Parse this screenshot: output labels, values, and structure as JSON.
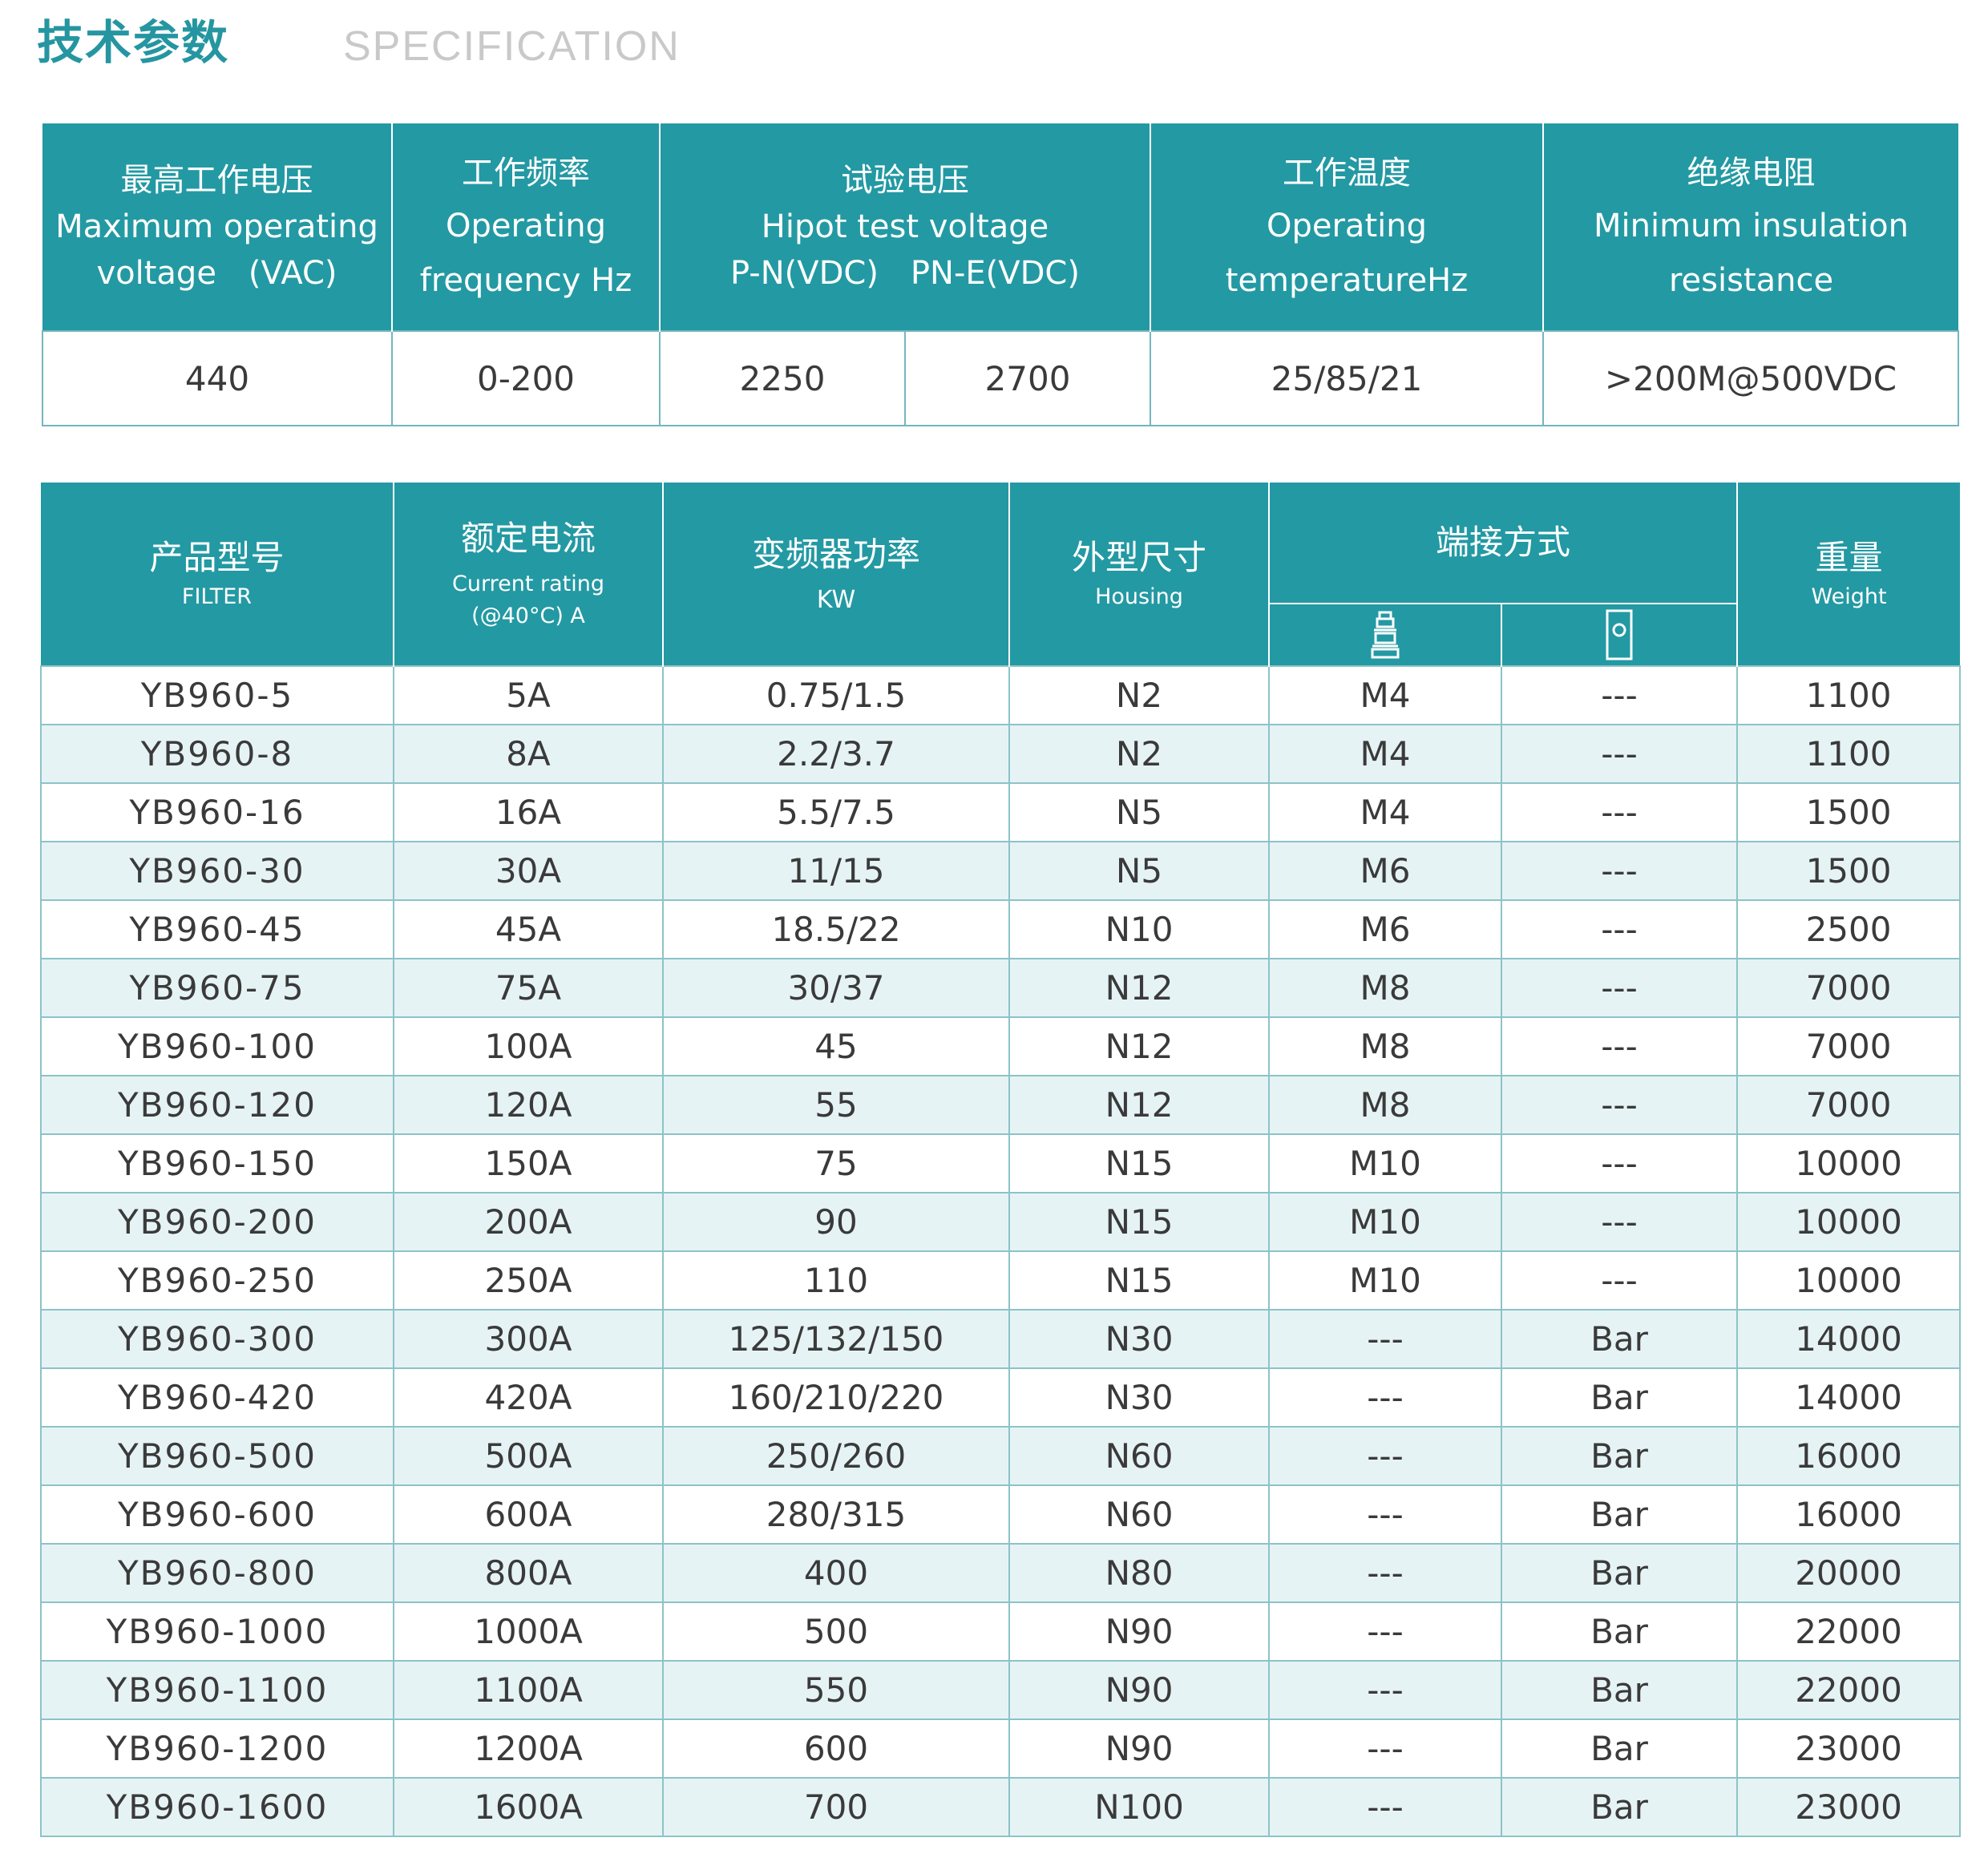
{
  "heading": {
    "cn": "技术参数",
    "en": "SPECIFICATION"
  },
  "spec": {
    "headers": [
      {
        "cn": "最高工作电压",
        "en1": "Maximum operating",
        "en2": "voltage　(VAC)"
      },
      {
        "cn": "工作频率",
        "en1": "Operating",
        "en2": "frequency Hz"
      },
      {
        "cn": "试验电压",
        "en1": "Hipot test voltage",
        "en2": "P-N(VDC)　PN-E(VDC)"
      },
      {
        "cn": "工作温度",
        "en1": "Operating",
        "en2": "temperatureHz"
      },
      {
        "cn": "绝缘电阻",
        "en1": "Minimum insulation",
        "en2": "resistance"
      }
    ],
    "values": [
      "440",
      "0-200",
      "2250",
      "2700",
      "25/85/21",
      ">200M@500VDC"
    ]
  },
  "products": {
    "headers": {
      "model": {
        "cn": "产品型号",
        "en": "FILTER"
      },
      "current": {
        "cn": "额定电流",
        "en1": "Current rating",
        "en2": "(@40°C)  A"
      },
      "power": {
        "cn": "变频器功率",
        "en": "KW"
      },
      "housing": {
        "cn": "外型尺寸",
        "en": "Housing"
      },
      "terminal": {
        "cn": "端接方式",
        "icon1": "screw-terminal-icon",
        "icon2": "busbar-terminal-icon"
      },
      "weight": {
        "cn": "重量",
        "en": "Weight"
      }
    },
    "rows": [
      [
        "YB960-5",
        "5A",
        "0.75/1.5",
        "N2",
        "M4",
        "---",
        "1100"
      ],
      [
        "YB960-8",
        "8A",
        "2.2/3.7",
        "N2",
        "M4",
        "---",
        "1100"
      ],
      [
        "YB960-16",
        "16A",
        "5.5/7.5",
        "N5",
        "M4",
        "---",
        "1500"
      ],
      [
        "YB960-30",
        "30A",
        "11/15",
        "N5",
        "M6",
        "---",
        "1500"
      ],
      [
        "YB960-45",
        "45A",
        "18.5/22",
        "N10",
        "M6",
        "---",
        "2500"
      ],
      [
        "YB960-75",
        "75A",
        "30/37",
        "N12",
        "M8",
        "---",
        "7000"
      ],
      [
        "YB960-100",
        "100A",
        "45",
        "N12",
        "M8",
        "---",
        "7000"
      ],
      [
        "YB960-120",
        "120A",
        "55",
        "N12",
        "M8",
        "---",
        "7000"
      ],
      [
        "YB960-150",
        "150A",
        "75",
        "N15",
        "M10",
        "---",
        "10000"
      ],
      [
        "YB960-200",
        "200A",
        "90",
        "N15",
        "M10",
        "---",
        "10000"
      ],
      [
        "YB960-250",
        "250A",
        "110",
        "N15",
        "M10",
        "---",
        "10000"
      ],
      [
        "YB960-300",
        "300A",
        "125/132/150",
        "N30",
        "---",
        "Bar",
        "14000"
      ],
      [
        "YB960-420",
        "420A",
        "160/210/220",
        "N30",
        "---",
        "Bar",
        "14000"
      ],
      [
        "YB960-500",
        "500A",
        "250/260",
        "N60",
        "---",
        "Bar",
        "16000"
      ],
      [
        "YB960-600",
        "600A",
        "280/315",
        "N60",
        "---",
        "Bar",
        "16000"
      ],
      [
        "YB960-800",
        "800A",
        "400",
        "N80",
        "---",
        "Bar",
        "20000"
      ],
      [
        "YB960-1000",
        "1000A",
        "500",
        "N90",
        "---",
        "Bar",
        "22000"
      ],
      [
        "YB960-1100",
        "1100A",
        "550",
        "N90",
        "---",
        "Bar",
        "22000"
      ],
      [
        "YB960-1200",
        "1200A",
        "600",
        "N90",
        "---",
        "Bar",
        "23000"
      ],
      [
        "YB960-1600",
        "1600A",
        "700",
        "N100",
        "---",
        "Bar",
        "23000"
      ]
    ]
  },
  "colors": {
    "accent": "#2399a3",
    "title": "#2596a1",
    "subtitle": "#c9c9c9",
    "stripe": "#e6f3f5"
  }
}
